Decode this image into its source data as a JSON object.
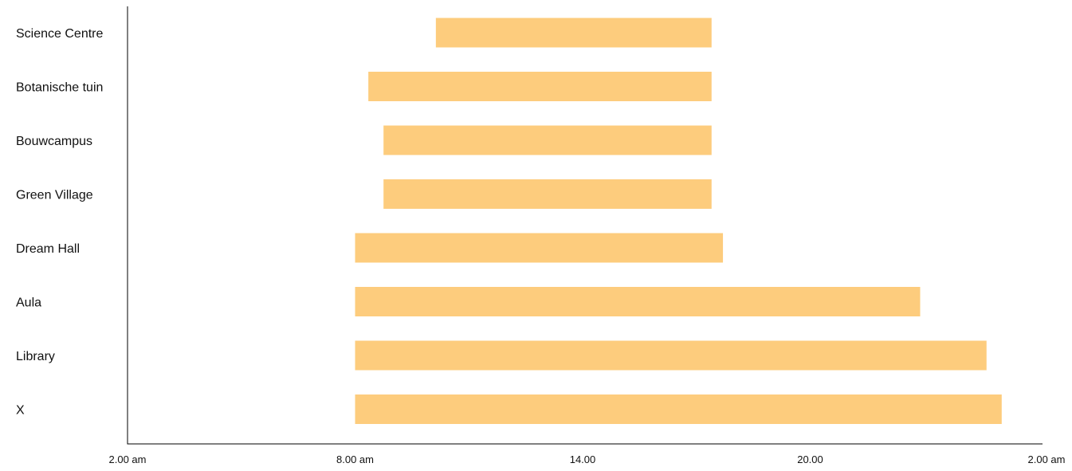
{
  "chart_data": {
    "type": "bar",
    "orientation": "horizontal",
    "title": "",
    "xlabel": "",
    "ylabel": "",
    "categories": [
      "Science Centre",
      "Botanische tuin",
      "Bouwcampus",
      "Green Village",
      "Dream Hall",
      "Aula",
      "Library",
      "X"
    ],
    "start_hours": [
      10.13,
      8.35,
      8.75,
      8.75,
      8.0,
      8.0,
      8.0,
      8.0
    ],
    "end_hours": [
      17.4,
      17.4,
      17.4,
      17.4,
      17.7,
      22.9,
      24.65,
      25.05
    ],
    "xlim": [
      2,
      26
    ],
    "x_ticks": [
      {
        "value": 2,
        "label": "2.00 am"
      },
      {
        "value": 8,
        "label": "8.00 am"
      },
      {
        "value": 14,
        "label": "14.00"
      },
      {
        "value": 20,
        "label": "20.00"
      },
      {
        "value": 26,
        "label": "2.00 am"
      }
    ],
    "bar_color": "#FDCC7D",
    "axis_color": "#000000",
    "grid": false,
    "legend": "none"
  }
}
